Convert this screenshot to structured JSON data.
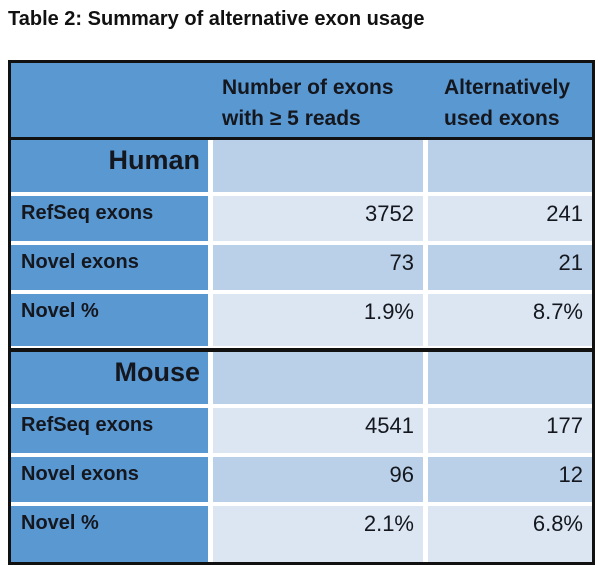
{
  "title": "Table 2: Summary of alternative exon usage",
  "table": {
    "columns": [
      "",
      "Number of exons\nwith ≥ 5 reads",
      "Alternatively\nused exons"
    ],
    "sections": [
      {
        "name": "Human",
        "rows": [
          {
            "label": "RefSeq exons",
            "values": [
              "3752",
              "241"
            ]
          },
          {
            "label": "Novel exons",
            "values": [
              "73",
              "21"
            ]
          },
          {
            "label": "Novel %",
            "values": [
              "1.9%",
              "8.7%"
            ]
          }
        ]
      },
      {
        "name": "Mouse",
        "rows": [
          {
            "label": "RefSeq exons",
            "values": [
              "4541",
              "177"
            ]
          },
          {
            "label": "Novel exons",
            "values": [
              "96",
              "12"
            ]
          },
          {
            "label": "Novel %",
            "values": [
              "2.1%",
              "6.8%"
            ]
          }
        ]
      }
    ],
    "colors": {
      "header_blue": "#5a98d2",
      "row_medium": "#bad0e8",
      "row_light": "#dce6f2",
      "border": "#111111"
    }
  }
}
